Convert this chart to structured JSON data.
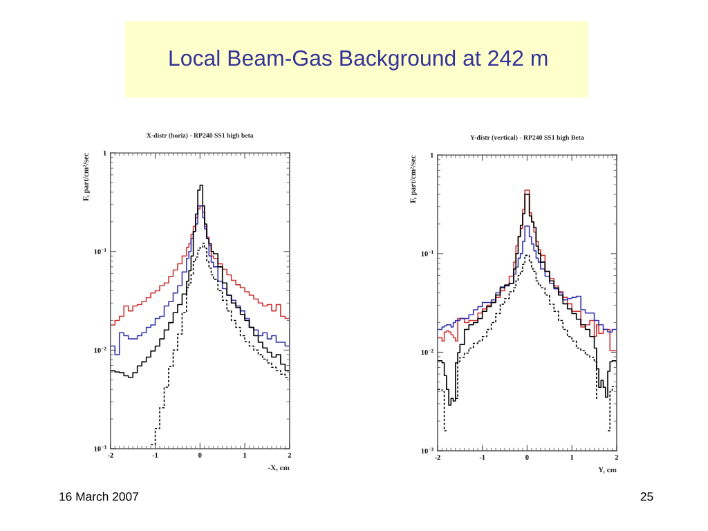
{
  "chart_data": [
    {
      "type": "step",
      "title": "X-distr (horiz) - RP240 SS1 high beta",
      "xlabel": "-X, cm",
      "ylabel": "F, part/cm²/sec",
      "log": true,
      "xlim": [
        -2,
        2
      ],
      "xticks": [
        -2,
        -1,
        0,
        1,
        2
      ],
      "ylim": [
        0.001,
        1
      ],
      "yticks": [
        {
          "value": 0.001,
          "label": "10$^{−3}$"
        },
        {
          "value": 0.01,
          "label": "10$^{−2}$"
        },
        {
          "value": 0.1,
          "label": "10$^{−1}$"
        },
        1
      ],
      "annotations": [
        "Local Beam-Gas Background at 242 m",
        "16 March 2007",
        "25"
      ],
      "x": [
        -2.0,
        -1.9,
        -1.8,
        -1.7,
        -1.6,
        -1.5,
        -1.4,
        -1.3,
        -1.2,
        -1.1,
        -1.0,
        -0.9,
        -0.8,
        -0.7,
        -0.6,
        -0.5,
        -0.4,
        -0.3,
        -0.25,
        -0.2,
        -0.15,
        -0.1,
        -0.05,
        0.0,
        0.06,
        0.1,
        0.15,
        0.2,
        0.25,
        0.3,
        0.4,
        0.5,
        0.6,
        0.7,
        0.8,
        0.9,
        1.0,
        1.1,
        1.2,
        1.3,
        1.4,
        1.5,
        1.6,
        1.7,
        1.8,
        1.9,
        2.0
      ],
      "series": [
        {
          "color": "#cc3333",
          "values": [
            0.018,
            0.02,
            0.022,
            0.028,
            0.025,
            0.028,
            0.029,
            0.031,
            0.034,
            0.038,
            0.04,
            0.045,
            0.048,
            0.056,
            0.065,
            0.075,
            0.09,
            0.11,
            0.12,
            0.15,
            0.18,
            0.22,
            0.27,
            0.29,
            0.25,
            0.18,
            0.14,
            0.115,
            0.09,
            0.085,
            0.075,
            0.066,
            0.058,
            0.051,
            0.046,
            0.043,
            0.039,
            0.036,
            0.033,
            0.03,
            0.028,
            0.029,
            0.025,
            0.029,
            0.022,
            0.021,
            0.021
          ]
        },
        {
          "color": "#3333aa",
          "values": [
            0.011,
            0.009,
            0.015,
            0.014,
            0.013,
            0.013,
            0.014,
            0.015,
            0.017,
            0.018,
            0.021,
            0.022,
            0.028,
            0.031,
            0.038,
            0.045,
            0.062,
            0.085,
            0.1,
            0.135,
            0.16,
            0.19,
            0.29,
            0.29,
            0.22,
            0.17,
            0.135,
            0.09,
            0.078,
            0.07,
            0.05,
            0.042,
            0.036,
            0.032,
            0.028,
            0.025,
            0.021,
            0.017,
            0.016,
            0.014,
            0.015,
            0.013,
            0.014,
            0.012,
            0.012,
            0.011,
            0.016
          ]
        },
        {
          "color": "#000000",
          "values": [
            0.0062,
            0.006,
            0.0059,
            0.0055,
            0.0053,
            0.0059,
            0.0069,
            0.0076,
            0.0085,
            0.0098,
            0.011,
            0.013,
            0.016,
            0.019,
            0.024,
            0.029,
            0.037,
            0.05,
            0.064,
            0.09,
            0.16,
            0.24,
            0.42,
            0.47,
            0.29,
            0.19,
            0.135,
            0.12,
            0.1,
            0.095,
            0.07,
            0.048,
            0.036,
            0.03,
            0.027,
            0.023,
            0.02,
            0.017,
            0.014,
            0.012,
            0.0105,
            0.0095,
            0.0085,
            0.009,
            0.0072,
            0.0062,
            0.0055
          ]
        },
        {
          "color": "#000000",
          "line_style": "dashed",
          "values": [
            null,
            null,
            null,
            null,
            null,
            null,
            null,
            null,
            null,
            0.0011,
            0.0016,
            0.0026,
            0.0042,
            0.0068,
            0.01,
            0.0145,
            0.024,
            0.043,
            0.048,
            0.058,
            0.079,
            0.088,
            0.103,
            0.11,
            0.121,
            0.108,
            0.079,
            0.068,
            0.058,
            0.052,
            0.04,
            0.032,
            0.025,
            0.02,
            0.017,
            0.014,
            0.0122,
            0.011,
            0.01,
            0.009,
            0.0081,
            0.0074,
            0.0067,
            0.0062,
            0.0057,
            0.0053,
            0.0048
          ]
        }
      ]
    },
    {
      "type": "step",
      "title": "Y-distr (vertical) - RP240 SS1 high Beta",
      "xlabel": "Y, cm",
      "ylabel": "F, part/cm²/sec",
      "log": true,
      "xlim": [
        -2,
        2
      ],
      "xticks": [
        -2,
        -1,
        0,
        1,
        2
      ],
      "ylim": [
        0.001,
        1
      ],
      "yticks": [
        {
          "value": 0.001,
          "label": "10$^{−3}$"
        },
        {
          "value": 0.01,
          "label": "10$^{−2}$"
        },
        {
          "value": 0.1,
          "label": "10$^{−1}$"
        },
        1
      ],
      "x": [
        -2.0,
        -1.9,
        -1.85,
        -1.8,
        -1.75,
        -1.7,
        -1.65,
        -1.6,
        -1.55,
        -1.5,
        -1.4,
        -1.3,
        -1.2,
        -1.1,
        -1.0,
        -0.9,
        -0.8,
        -0.7,
        -0.6,
        -0.5,
        -0.4,
        -0.3,
        -0.25,
        -0.2,
        -0.15,
        -0.1,
        -0.05,
        0.05,
        0.1,
        0.15,
        0.2,
        0.25,
        0.3,
        0.4,
        0.5,
        0.6,
        0.7,
        0.8,
        0.9,
        1.0,
        1.1,
        1.2,
        1.3,
        1.4,
        1.5,
        1.55,
        1.6,
        1.65,
        1.7,
        1.75,
        1.8,
        1.85,
        1.9,
        1.95,
        2.0
      ],
      "series": [
        {
          "color": "#cc3333",
          "values": [
            0.014,
            0.013,
            0.016,
            0.0165,
            0.016,
            0.015,
            0.014,
            0.013,
            0.022,
            0.022,
            0.02,
            0.021,
            0.021,
            0.025,
            0.0275,
            0.03,
            0.032,
            0.036,
            0.042,
            0.048,
            0.059,
            0.082,
            0.12,
            0.15,
            0.18,
            0.28,
            0.44,
            0.26,
            0.21,
            0.165,
            0.133,
            0.11,
            0.096,
            0.066,
            0.056,
            0.047,
            0.041,
            0.036,
            0.031,
            0.026,
            0.026,
            0.018,
            0.019,
            0.021,
            0.0145,
            0.019,
            0.0155,
            0.0155,
            0.017,
            0.017,
            0.017,
            0.0104,
            0.0104,
            0.0104,
            0.0104
          ]
        },
        {
          "color": "#3333aa",
          "values": [
            0.017,
            0.018,
            0.0185,
            0.019,
            0.019,
            0.018,
            0.02,
            0.021,
            0.021,
            0.022,
            0.022,
            0.024,
            0.027,
            0.029,
            0.032,
            0.032,
            0.034,
            0.04,
            0.046,
            0.047,
            0.05,
            0.062,
            0.073,
            0.09,
            0.1,
            0.133,
            0.19,
            0.148,
            0.125,
            0.107,
            0.09,
            0.082,
            0.07,
            0.059,
            0.05,
            0.044,
            0.04,
            0.034,
            0.035,
            0.036,
            0.037,
            0.027,
            0.025,
            0.025,
            0.021,
            0.021,
            0.019,
            0.019,
            0.017,
            0.017,
            0.016,
            0.016,
            0.017,
            0.017,
            0.017
          ]
        },
        {
          "color": "#000000",
          "values": [
            0.0082,
            0.0078,
            0.0058,
            0.0042,
            0.0029,
            0.0034,
            0.0032,
            0.0078,
            0.0099,
            0.012,
            0.017,
            0.019,
            0.02,
            0.022,
            0.026,
            0.029,
            0.032,
            0.038,
            0.045,
            0.048,
            0.05,
            0.07,
            0.1,
            0.148,
            0.194,
            0.254,
            0.4,
            0.241,
            0.21,
            0.184,
            0.119,
            0.1,
            0.082,
            0.066,
            0.053,
            0.045,
            0.038,
            0.031,
            0.0275,
            0.0247,
            0.0216,
            0.019,
            0.017,
            0.0144,
            0.011,
            0.0068,
            0.0044,
            0.0052,
            0.0044,
            0.0035,
            0.0064,
            0.008,
            0.0082,
            0.0082,
            0.0072
          ]
        },
        {
          "color": "#000000",
          "line_style": "dashed",
          "values": [
            0.0042,
            0.004,
            0.0016,
            null,
            null,
            null,
            null,
            0.0034,
            0.008,
            0.0089,
            0.0098,
            0.011,
            0.0123,
            0.013,
            0.0144,
            0.017,
            0.02,
            0.0247,
            0.0307,
            0.035,
            0.041,
            0.045,
            0.053,
            0.06,
            0.066,
            0.078,
            0.096,
            0.082,
            0.07,
            0.066,
            0.053,
            0.048,
            0.045,
            0.038,
            0.0307,
            0.026,
            0.021,
            0.017,
            0.0144,
            0.013,
            0.011,
            0.0104,
            0.0094,
            0.0089,
            0.008,
            0.0034,
            null,
            null,
            null,
            null,
            0.0016,
            0.004,
            0.0045,
            0.0045,
            0.0045
          ]
        }
      ]
    }
  ]
}
